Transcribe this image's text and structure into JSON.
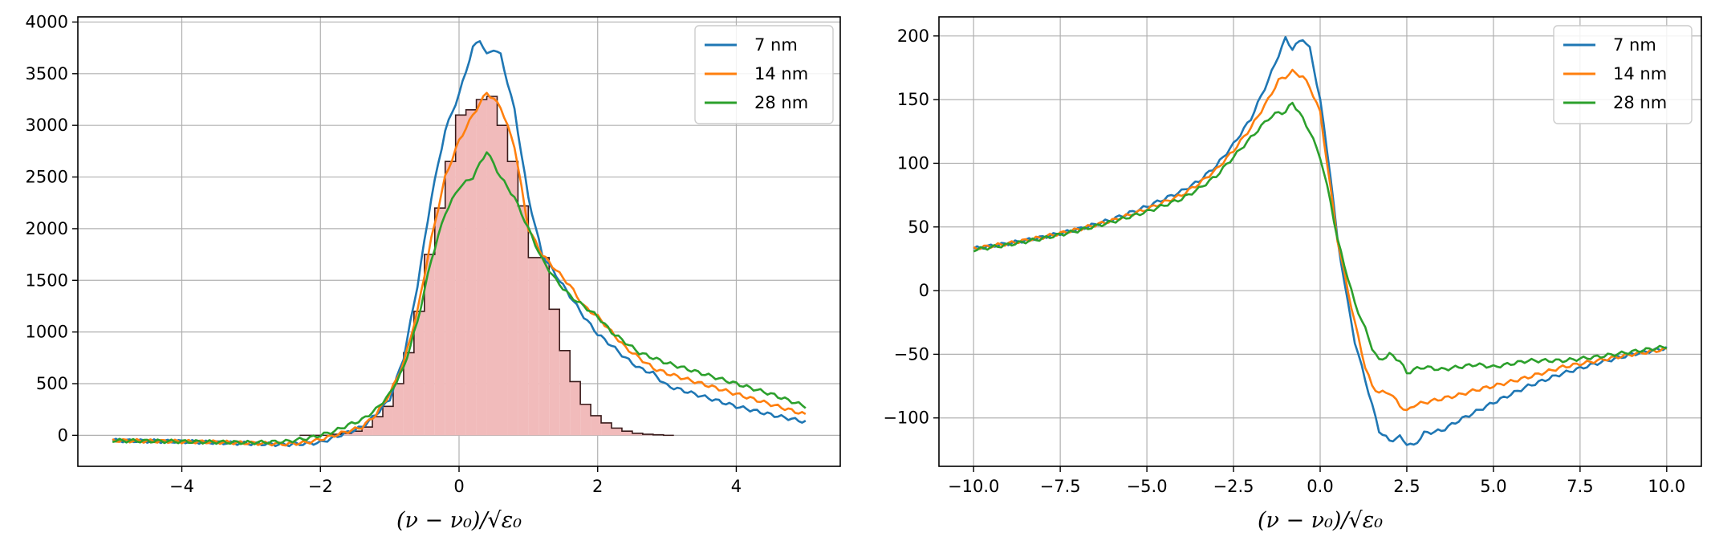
{
  "chart_data": [
    {
      "type": "line",
      "xlabel": "(ν − ν₀)/√ε₀",
      "xlim": [
        -5.5,
        5.5
      ],
      "ylim": [
        -300,
        4050
      ],
      "xticks": [
        -4,
        -2,
        0,
        2,
        4
      ],
      "xtick_labels": [
        "−4",
        "−2",
        "0",
        "2",
        "4"
      ],
      "yticks": [
        0,
        500,
        1000,
        1500,
        2000,
        2500,
        3000,
        3500,
        4000
      ],
      "ytick_labels": [
        "0",
        "500",
        "1000",
        "1500",
        "2000",
        "2500",
        "3000",
        "3500",
        "4000"
      ],
      "grid": true,
      "legend_position": "top-right",
      "histogram": {
        "bin_width": 0.15,
        "bin_left_edges": [
          -2.3,
          -2.15,
          -2.0,
          -1.85,
          -1.7,
          -1.55,
          -1.4,
          -1.25,
          -1.1,
          -0.95,
          -0.8,
          -0.65,
          -0.5,
          -0.35,
          -0.2,
          -0.05,
          0.1,
          0.25,
          0.4,
          0.55,
          0.7,
          0.85,
          1.0,
          1.15,
          1.3,
          1.45,
          1.6,
          1.75,
          1.9,
          2.05,
          2.2,
          2.35,
          2.5,
          2.65,
          2.8,
          2.95
        ],
        "values": [
          0,
          0,
          0,
          10,
          20,
          40,
          80,
          180,
          280,
          500,
          800,
          1200,
          1750,
          2200,
          2650,
          3100,
          3150,
          3250,
          3280,
          3000,
          2650,
          2220,
          1720,
          1720,
          1220,
          820,
          520,
          300,
          190,
          120,
          70,
          40,
          20,
          10,
          5,
          0
        ],
        "color": "#f1bbbb",
        "edgecolor": "#3a1b1b"
      },
      "series": [
        {
          "name": "7 nm",
          "color": "#1f77b4",
          "x": [
            -5,
            -4.5,
            -4,
            -3.5,
            -3,
            -2.5,
            -2.2,
            -2,
            -1.8,
            -1.6,
            -1.4,
            -1.2,
            -1.0,
            -0.8,
            -0.6,
            -0.4,
            -0.2,
            0.0,
            0.2,
            0.3,
            0.4,
            0.5,
            0.6,
            0.8,
            1.0,
            1.2,
            1.4,
            1.6,
            1.8,
            2.0,
            2.2,
            2.4,
            2.6,
            2.8,
            3.0,
            3.5,
            4.0,
            4.5,
            5.0
          ],
          "y": [
            -50,
            -55,
            -60,
            -70,
            -80,
            -90,
            -80,
            -70,
            -20,
            30,
            80,
            200,
            350,
            750,
            1450,
            2300,
            2950,
            3300,
            3750,
            3830,
            3680,
            3740,
            3680,
            3150,
            2300,
            1750,
            1550,
            1350,
            1150,
            980,
            870,
            750,
            650,
            600,
            480,
            380,
            280,
            200,
            130
          ]
        },
        {
          "name": "14 nm",
          "color": "#ff7f0e",
          "x": [
            -5,
            -4.5,
            -4,
            -3.5,
            -3,
            -2.5,
            -2.2,
            -2,
            -1.8,
            -1.6,
            -1.4,
            -1.2,
            -1.0,
            -0.8,
            -0.6,
            -0.4,
            -0.2,
            0.0,
            0.2,
            0.4,
            0.6,
            0.8,
            1.0,
            1.2,
            1.4,
            1.6,
            1.8,
            2.0,
            2.2,
            2.4,
            2.6,
            2.8,
            3.0,
            3.5,
            4.0,
            4.5,
            5.0
          ],
          "y": [
            -50,
            -55,
            -60,
            -65,
            -75,
            -85,
            -70,
            -40,
            0,
            40,
            80,
            200,
            400,
            700,
            1200,
            1900,
            2500,
            2850,
            3100,
            3320,
            3180,
            2800,
            2000,
            1750,
            1600,
            1450,
            1250,
            1150,
            1000,
            850,
            750,
            650,
            600,
            500,
            400,
            300,
            200
          ]
        },
        {
          "name": "28 nm",
          "color": "#2ca02c",
          "x": [
            -5,
            -4.5,
            -4,
            -3.5,
            -3,
            -2.5,
            -2.2,
            -2,
            -1.8,
            -1.6,
            -1.4,
            -1.2,
            -1.0,
            -0.8,
            -0.6,
            -0.4,
            -0.2,
            0.0,
            0.2,
            0.4,
            0.6,
            0.8,
            1.0,
            1.2,
            1.4,
            1.6,
            1.8,
            2.0,
            2.2,
            2.4,
            2.6,
            2.8,
            3.0,
            3.5,
            4.0,
            4.5,
            5.0
          ],
          "y": [
            -50,
            -55,
            -60,
            -65,
            -70,
            -60,
            -30,
            0,
            40,
            100,
            150,
            250,
            400,
            650,
            1100,
            1700,
            2150,
            2400,
            2500,
            2750,
            2500,
            2300,
            2000,
            1700,
            1500,
            1350,
            1250,
            1150,
            1000,
            900,
            800,
            750,
            700,
            600,
            500,
            400,
            280
          ]
        }
      ]
    },
    {
      "type": "line",
      "xlabel": "(ν − ν₀)/√ε₀",
      "xlim": [
        -11,
        11
      ],
      "ylim": [
        -138,
        215
      ],
      "xticks": [
        -10,
        -7.5,
        -5,
        -2.5,
        0,
        2.5,
        5,
        7.5,
        10
      ],
      "xtick_labels": [
        "−10.0",
        "−7.5",
        "−5.0",
        "−2.5",
        "0.0",
        "2.5",
        "5.0",
        "7.5",
        "10.0"
      ],
      "yticks": [
        -100,
        -50,
        0,
        50,
        100,
        150,
        200
      ],
      "ytick_labels": [
        "−100",
        "−50",
        "0",
        "50",
        "100",
        "150",
        "200"
      ],
      "grid": true,
      "legend_position": "top-right",
      "series": [
        {
          "name": "7 nm",
          "color": "#1f77b4",
          "x": [
            -10,
            -9,
            -8,
            -7,
            -6,
            -5,
            -4,
            -3.5,
            -3,
            -2.5,
            -2.0,
            -1.5,
            -1.2,
            -1.0,
            -0.8,
            -0.5,
            -0.3,
            0.0,
            0.3,
            0.5,
            0.8,
            1.0,
            1.3,
            1.5,
            1.7,
            2.0,
            2.3,
            2.5,
            2.7,
            3.0,
            3.5,
            4.0,
            4.5,
            5.0,
            6.0,
            7.0,
            8.0,
            9.0,
            10.0
          ],
          "y": [
            33,
            37,
            42,
            48,
            56,
            66,
            78,
            86,
            98,
            115,
            135,
            165,
            185,
            198,
            190,
            198,
            190,
            150,
            90,
            40,
            -10,
            -40,
            -70,
            -90,
            -110,
            -118,
            -115,
            -120,
            -122,
            -112,
            -110,
            -102,
            -95,
            -88,
            -75,
            -65,
            -57,
            -50,
            -45
          ]
        },
        {
          "name": "14 nm",
          "color": "#ff7f0e",
          "x": [
            -10,
            -9,
            -8,
            -7,
            -6,
            -5,
            -4,
            -3.5,
            -3,
            -2.5,
            -2.0,
            -1.5,
            -1.2,
            -1.0,
            -0.8,
            -0.5,
            -0.3,
            0.0,
            0.3,
            0.5,
            0.8,
            1.0,
            1.3,
            1.5,
            1.7,
            2.0,
            2.3,
            2.5,
            2.7,
            3.0,
            3.5,
            4.0,
            4.5,
            5.0,
            6.0,
            7.0,
            8.0,
            9.0,
            10.0
          ],
          "y": [
            33,
            37,
            42,
            48,
            55,
            64,
            75,
            84,
            95,
            110,
            128,
            150,
            165,
            168,
            172,
            168,
            160,
            140,
            80,
            40,
            0,
            -25,
            -60,
            -75,
            -80,
            -80,
            -90,
            -95,
            -90,
            -88,
            -85,
            -82,
            -78,
            -75,
            -68,
            -60,
            -55,
            -50,
            -46
          ]
        },
        {
          "name": "28 nm",
          "color": "#2ca02c",
          "x": [
            -10,
            -9,
            -8,
            -7,
            -6,
            -5,
            -4,
            -3.5,
            -3,
            -2.5,
            -2.0,
            -1.5,
            -1.2,
            -1.0,
            -0.8,
            -0.5,
            -0.3,
            0.0,
            0.3,
            0.5,
            0.8,
            1.0,
            1.3,
            1.5,
            1.7,
            2.0,
            2.3,
            2.5,
            2.7,
            3.0,
            3.5,
            4.0,
            4.5,
            5.0,
            6.0,
            7.0,
            8.0,
            9.0,
            10.0
          ],
          "y": [
            32,
            36,
            41,
            47,
            54,
            62,
            72,
            80,
            90,
            105,
            120,
            135,
            140,
            140,
            148,
            135,
            125,
            105,
            70,
            40,
            10,
            -10,
            -30,
            -45,
            -55,
            -50,
            -55,
            -65,
            -62,
            -60,
            -62,
            -60,
            -58,
            -60,
            -55,
            -55,
            -52,
            -48,
            -44
          ]
        }
      ]
    }
  ]
}
